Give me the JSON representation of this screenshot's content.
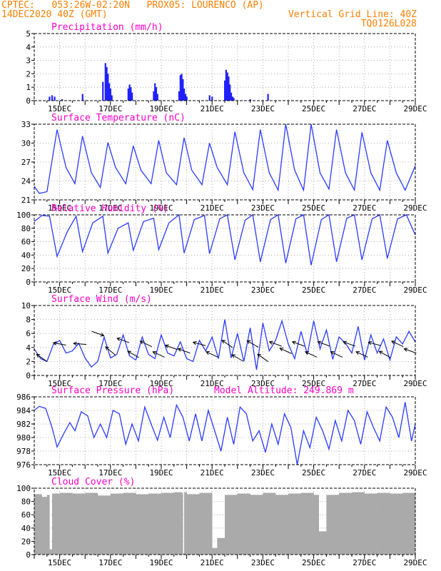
{
  "header": {
    "line1_left": "CPTEC:   053:26W-02:20N   PROX05: LOURENCO (AP)",
    "line2_left": "14DEC2020 40Z (GMT)",
    "line2_right": "Vertical Grid Line: 40Z",
    "line3_right": "TQ0126L028"
  },
  "colors": {
    "header": "#ff7f00",
    "title": "#ff00c8",
    "series": "#2b3bff",
    "bars": "#2020ff",
    "cloud": "#aaaaaa",
    "arrows": "#000000"
  },
  "chart_data": [
    {
      "type": "bar",
      "title": "Precipitation (mm/h)",
      "ylim": [
        0,
        5
      ],
      "yticks": [
        "0",
        "1",
        "2",
        "3",
        "4",
        "5"
      ],
      "x_labels": [
        "15DEC",
        "17DEC",
        "19DEC",
        "21DEC",
        "23DEC",
        "25DEC",
        "27DEC",
        "29DEC"
      ],
      "x": [
        14.6,
        14.7,
        14.8,
        15.1,
        15.9,
        16.7,
        16.8,
        16.85,
        16.9,
        16.95,
        17.0,
        17.05,
        17.7,
        17.75,
        17.8,
        17.85,
        18.7,
        18.75,
        18.8,
        18.85,
        19.7,
        19.75,
        19.8,
        19.85,
        19.9,
        19.95,
        20.0,
        20.9,
        21.0,
        21.5,
        21.55,
        21.6,
        21.65,
        21.7,
        21.75,
        21.8,
        21.85,
        22.5,
        23.2
      ],
      "values": [
        0.3,
        0.4,
        0.3,
        0.1,
        0.5,
        1.4,
        2.8,
        2.5,
        2.0,
        1.3,
        0.9,
        0.4,
        0.9,
        1.2,
        1.0,
        0.6,
        0.7,
        1.3,
        1.0,
        0.5,
        0.7,
        1.9,
        2.0,
        1.6,
        0.9,
        0.5,
        0.3,
        0.4,
        0.3,
        1.5,
        2.3,
        2.1,
        1.8,
        1.2,
        0.6,
        0.3,
        0.2,
        0.1,
        0.5
      ],
      "grid": true
    },
    {
      "type": "line",
      "title": "Surface Temperature (nC)",
      "ylim": [
        19,
        33
      ],
      "yticks": [
        "21",
        "24",
        "27",
        "30",
        "33"
      ],
      "x_labels": [
        "15DEC",
        "17DEC",
        "19DEC",
        "21DEC",
        "23DEC",
        "25DEC",
        "27DEC",
        "29DEC"
      ],
      "x": [
        14.0,
        14.2,
        14.5,
        14.9,
        15.25,
        15.6,
        15.9,
        16.25,
        16.6,
        16.9,
        17.2,
        17.6,
        17.9,
        18.2,
        18.6,
        18.9,
        19.2,
        19.6,
        19.9,
        20.2,
        20.6,
        20.9,
        21.2,
        21.6,
        21.9,
        22.25,
        22.6,
        22.9,
        23.25,
        23.6,
        23.9,
        24.25,
        24.6,
        24.9,
        25.25,
        25.6,
        25.9,
        26.25,
        26.6,
        26.9,
        27.25,
        27.6,
        27.9,
        28.25,
        28.6,
        29.0
      ],
      "values": [
        21.5,
        20.2,
        20.5,
        32.0,
        25.0,
        22.0,
        30.8,
        24.0,
        21.3,
        29.6,
        25.0,
        22.0,
        29.0,
        24.5,
        22.0,
        30.0,
        24.0,
        21.8,
        30.5,
        24.5,
        21.8,
        29.5,
        25.0,
        21.8,
        31.6,
        24.0,
        20.9,
        32.0,
        24.0,
        20.8,
        33.0,
        24.5,
        20.8,
        33.0,
        24.0,
        21.0,
        32.0,
        24.0,
        20.8,
        31.5,
        24.0,
        20.8,
        30.0,
        24.0,
        20.8,
        25.3
      ],
      "grid": true
    },
    {
      "type": "line",
      "title": "Relative Humidity (%)",
      "ylim": [
        0,
        100
      ],
      "yticks": [
        "0",
        "20",
        "40",
        "60",
        "80",
        "100"
      ],
      "x_labels": [
        "15DEC",
        "17DEC",
        "19DEC",
        "21DEC",
        "23DEC",
        "25DEC",
        "27DEC",
        "29DEC"
      ],
      "x": [
        14.0,
        14.3,
        14.6,
        14.9,
        15.3,
        15.65,
        15.9,
        16.3,
        16.7,
        16.9,
        17.3,
        17.7,
        17.9,
        18.3,
        18.7,
        18.9,
        19.3,
        19.7,
        19.9,
        20.3,
        20.7,
        20.9,
        21.3,
        21.6,
        21.9,
        22.3,
        22.6,
        22.9,
        23.3,
        23.6,
        23.9,
        24.3,
        24.6,
        24.9,
        25.3,
        25.6,
        25.9,
        26.3,
        26.6,
        26.9,
        27.3,
        27.6,
        27.9,
        28.3,
        28.65,
        29.0
      ],
      "values": [
        90,
        99,
        98,
        38,
        75,
        98,
        45,
        88,
        98,
        43,
        80,
        88,
        47,
        90,
        95,
        48,
        88,
        100,
        43,
        93,
        99,
        42,
        94,
        100,
        33,
        92,
        100,
        30,
        93,
        100,
        28,
        94,
        100,
        25,
        93,
        100,
        30,
        95,
        100,
        33,
        94,
        100,
        35,
        94,
        100,
        70
      ],
      "grid": true
    },
    {
      "type": "line",
      "title": "Surface Wind (m/s)",
      "ylim": [
        0,
        10
      ],
      "yticks": [
        "0",
        "2",
        "4",
        "6",
        "8",
        "10"
      ],
      "x_labels": [
        "15DEC",
        "17DEC",
        "19DEC",
        "21DEC",
        "23DEC",
        "25DEC",
        "27DEC",
        "29DEC"
      ],
      "x": [
        14.0,
        14.25,
        14.5,
        14.75,
        15.0,
        15.25,
        15.5,
        15.75,
        16.0,
        16.25,
        16.5,
        16.75,
        17.0,
        17.25,
        17.5,
        17.75,
        18.0,
        18.25,
        18.5,
        18.75,
        19.0,
        19.25,
        19.5,
        19.75,
        20.0,
        20.25,
        20.5,
        20.75,
        21.0,
        21.25,
        21.5,
        21.75,
        22.0,
        22.25,
        22.5,
        22.75,
        23.0,
        23.25,
        23.5,
        23.75,
        24.0,
        24.25,
        24.5,
        24.75,
        25.0,
        25.25,
        25.5,
        25.75,
        26.0,
        26.25,
        26.5,
        26.75,
        27.0,
        27.25,
        27.5,
        27.75,
        28.0,
        28.25,
        28.5,
        28.75,
        29.0
      ],
      "values": [
        3.8,
        2.4,
        2.0,
        4.4,
        5.0,
        3.2,
        3.5,
        4.6,
        2.5,
        1.2,
        2.0,
        5.5,
        2.5,
        3.0,
        5.8,
        2.8,
        2.2,
        5.5,
        3.0,
        2.4,
        5.8,
        3.2,
        2.8,
        4.8,
        2.4,
        2.0,
        5.0,
        3.5,
        5.5,
        2.4,
        8.0,
        2.5,
        6.0,
        2.0,
        6.8,
        0.8,
        7.5,
        3.5,
        5.0,
        7.8,
        4.5,
        2.4,
        6.3,
        3.0,
        7.8,
        3.8,
        6.5,
        2.3,
        5.5,
        4.6,
        3.2,
        7.0,
        2.2,
        5.8,
        3.2,
        5.2,
        2.2,
        5.5,
        4.5,
        6.3,
        4.8
      ],
      "arrow_x": [
        14.3,
        15.0,
        15.8,
        16.5,
        17.0,
        17.5,
        17.9,
        18.4,
        18.9,
        19.4,
        19.9,
        20.5,
        21.0,
        21.6,
        22.0,
        22.6,
        23.0,
        23.5,
        23.9,
        24.4,
        24.9,
        25.4,
        25.9,
        26.4,
        26.9,
        27.4,
        27.8,
        28.3,
        28.8
      ],
      "arrow_y": [
        2.5,
        4.5,
        4.5,
        6.0,
        3.5,
        5.0,
        3.0,
        4.5,
        3.0,
        4.0,
        3.5,
        4.5,
        3.0,
        4.5,
        2.5,
        4.5,
        2.5,
        4.5,
        3.5,
        4.5,
        3.0,
        4.5,
        3.0,
        4.5,
        3.0,
        4.5,
        3.0,
        4.5,
        3.5
      ],
      "arrow_dir": [
        -35,
        -10,
        -5,
        160,
        -40,
        -20,
        -30,
        -25,
        -25,
        -20,
        -20,
        -15,
        -25,
        -35,
        -30,
        -30,
        -35,
        -20,
        -25,
        -20,
        -25,
        -20,
        -25,
        -20,
        -25,
        -15,
        -30,
        -25,
        -20
      ],
      "grid": true
    },
    {
      "type": "line",
      "title": "Surface Pressure (hPa)",
      "subtitle": "Model Altitude: 249.869  m",
      "ylim": [
        976,
        986
      ],
      "yticks": [
        "976",
        "978",
        "980",
        "982",
        "984",
        "986"
      ],
      "x_labels": [
        "15DEC",
        "17DEC",
        "19DEC",
        "21DEC",
        "23DEC",
        "25DEC",
        "27DEC",
        "29DEC"
      ],
      "x": [
        14.0,
        14.2,
        14.45,
        14.7,
        14.9,
        15.15,
        15.4,
        15.6,
        15.85,
        16.1,
        16.35,
        16.6,
        16.85,
        17.1,
        17.35,
        17.6,
        17.85,
        18.1,
        18.35,
        18.6,
        18.85,
        19.1,
        19.35,
        19.6,
        19.85,
        20.1,
        20.35,
        20.6,
        20.85,
        21.1,
        21.35,
        21.6,
        21.85,
        22.1,
        22.35,
        22.6,
        22.85,
        23.1,
        23.35,
        23.6,
        23.85,
        24.1,
        24.35,
        24.6,
        24.85,
        25.1,
        25.35,
        25.6,
        25.85,
        26.1,
        26.35,
        26.6,
        26.85,
        27.1,
        27.35,
        27.6,
        27.85,
        28.1,
        28.35,
        28.6,
        28.85,
        29.0
      ],
      "values": [
        984.0,
        984.6,
        984.3,
        981.5,
        978.6,
        980.5,
        982.2,
        981.0,
        983.8,
        983.2,
        980.0,
        982.0,
        980.0,
        984.0,
        983.5,
        979.0,
        982.0,
        979.5,
        984.5,
        982.0,
        979.6,
        983.0,
        980.0,
        984.8,
        983.0,
        979.5,
        983.5,
        979.5,
        984.0,
        981.0,
        978.0,
        983.0,
        979.0,
        984.5,
        983.5,
        979.5,
        981.0,
        977.8,
        982.0,
        979.0,
        983.5,
        981.5,
        976.0,
        981.0,
        978.5,
        983.0,
        981.0,
        978.3,
        982.5,
        979.5,
        984.0,
        982.5,
        979.0,
        983.8,
        981.5,
        979.5,
        984.5,
        983.0,
        980.0,
        985.2,
        979.5,
        982.0
      ],
      "grid": true
    },
    {
      "type": "area",
      "title": "Cloud Cover (%)",
      "ylim": [
        0,
        100
      ],
      "yticks": [
        "0",
        "20",
        "40",
        "60",
        "80",
        "100"
      ],
      "x_labels": [
        "15DEC",
        "17DEC",
        "19DEC",
        "21DEC",
        "23DEC",
        "25DEC",
        "27DEC",
        "29DEC"
      ],
      "x": [
        14.0,
        14.3,
        14.5,
        14.6,
        14.7,
        15.0,
        15.5,
        16.0,
        16.5,
        17.0,
        17.5,
        18.0,
        18.5,
        19.0,
        19.5,
        19.8,
        19.85,
        19.9,
        20.0,
        20.5,
        20.8,
        21.0,
        21.2,
        21.5,
        22.0,
        22.5,
        23.0,
        23.5,
        24.0,
        24.5,
        25.0,
        25.2,
        25.5,
        26.0,
        26.5,
        27.0,
        27.5,
        28.0,
        28.5,
        29.0
      ],
      "values": [
        91,
        87,
        90,
        8,
        92,
        93,
        92,
        93,
        89,
        92,
        93,
        91,
        92,
        93,
        94,
        93,
        2,
        94,
        91,
        93,
        93,
        10,
        25,
        90,
        92,
        90,
        93,
        90,
        92,
        93,
        90,
        35,
        90,
        93,
        94,
        92,
        93,
        92,
        93,
        94
      ],
      "grid": true
    }
  ]
}
